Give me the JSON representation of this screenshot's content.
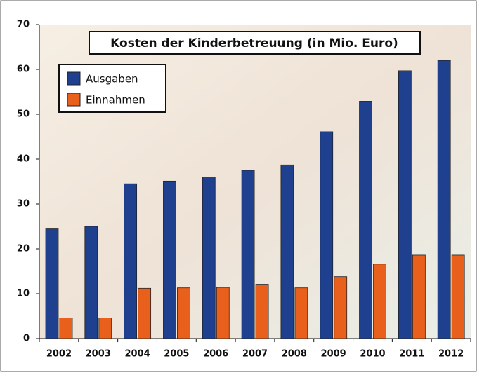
{
  "chart_data": {
    "type": "bar",
    "title": "Kosten der Kinderbetreuung (in Mio. Euro)",
    "categories": [
      "2002",
      "2003",
      "2004",
      "2005",
      "2006",
      "2007",
      "2008",
      "2009",
      "2010",
      "2011",
      "2012"
    ],
    "series": [
      {
        "name": "Ausgaben",
        "color": "#1f3f8f",
        "values": [
          24.6,
          25,
          34.5,
          35.1,
          36,
          37.5,
          38.7,
          46.1,
          52.9,
          59.7,
          62
        ]
      },
      {
        "name": "Einnahmen",
        "color": "#e8601c",
        "values": [
          4.6,
          4.6,
          11.2,
          11.3,
          11.4,
          12.1,
          11.3,
          13.8,
          16.6,
          18.6,
          18.6
        ]
      }
    ],
    "ylim": [
      0,
      70
    ],
    "yticks": [
      0,
      10,
      20,
      30,
      40,
      50,
      60,
      70
    ],
    "legend": "upper left"
  }
}
